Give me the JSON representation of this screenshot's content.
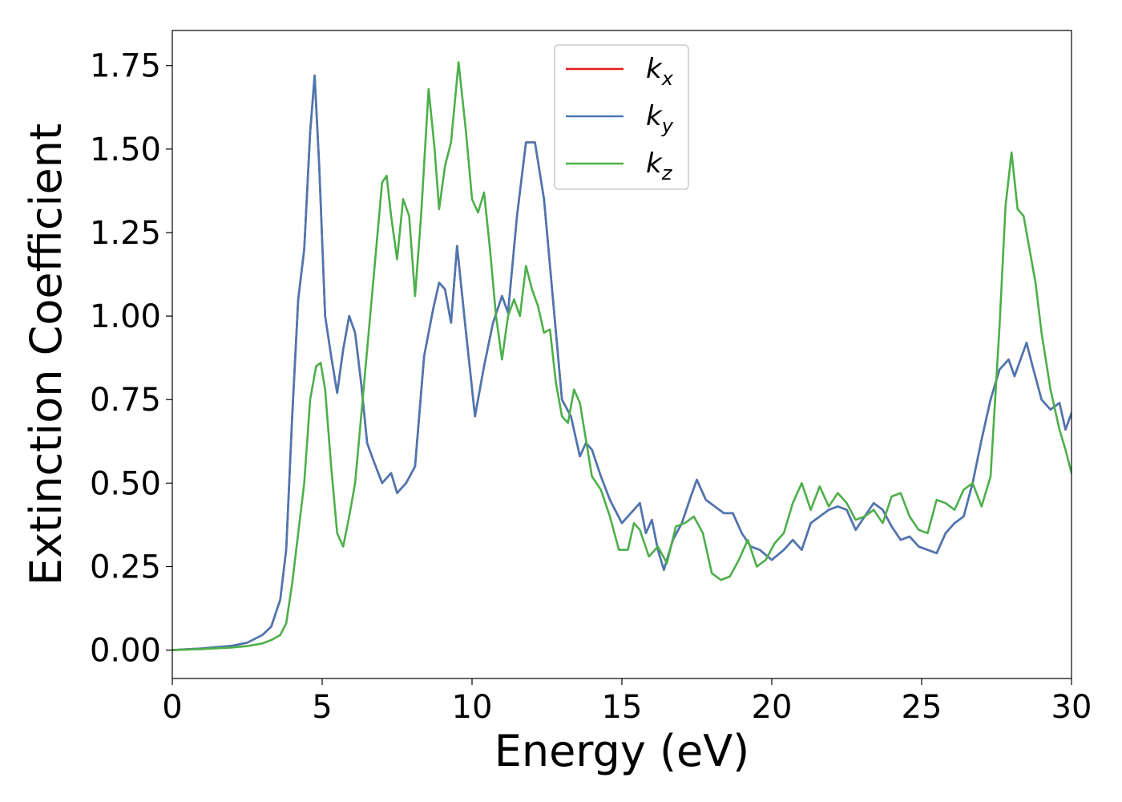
{
  "chart_data": {
    "type": "line",
    "xlabel": "Energy (eV)",
    "ylabel": "Extinction Coefficient",
    "xlim": [
      0,
      30
    ],
    "ylim": [
      -0.085,
      1.855
    ],
    "xticks": [
      0,
      5,
      10,
      15,
      20,
      25,
      30
    ],
    "xtick_labels": [
      "0",
      "5",
      "10",
      "15",
      "20",
      "25",
      "30"
    ],
    "yticks": [
      0,
      0.25,
      0.5,
      0.75,
      1.0,
      1.25,
      1.5,
      1.75
    ],
    "ytick_labels": [
      "0.00",
      "0.25",
      "0.50",
      "0.75",
      "1.00",
      "1.25",
      "1.50",
      "1.75"
    ],
    "grid": false,
    "legend_position": "top-center",
    "series": [
      {
        "name": "k_x",
        "legend_main": "k",
        "legend_sub": "x",
        "color": "#e41a1c",
        "x": [
          0,
          1,
          2,
          2.5,
          3,
          3.3,
          3.6,
          3.8,
          4.0,
          4.2,
          4.4,
          4.6,
          4.75,
          4.9,
          5.1,
          5.3,
          5.5,
          5.7,
          5.9,
          6.1,
          6.3,
          6.5,
          6.7,
          7.0,
          7.3,
          7.5,
          7.8,
          8.1,
          8.4,
          8.7,
          8.9,
          9.1,
          9.3,
          9.5,
          9.8,
          10.1,
          10.4,
          10.7,
          11.0,
          11.2,
          11.5,
          11.8,
          12.1,
          12.4,
          12.7,
          13.0,
          13.3,
          13.6,
          13.8,
          14.0,
          14.3,
          14.6,
          15.0,
          15.3,
          15.6,
          15.8,
          16.0,
          16.2,
          16.4,
          16.7,
          17.0,
          17.3,
          17.5,
          17.8,
          18.1,
          18.4,
          18.7,
          19.0,
          19.3,
          19.6,
          20.0,
          20.4,
          20.7,
          21.0,
          21.3,
          21.6,
          21.9,
          22.2,
          22.5,
          22.8,
          23.1,
          23.4,
          23.7,
          24.0,
          24.3,
          24.6,
          24.9,
          25.2,
          25.5,
          25.8,
          26.1,
          26.4,
          26.7,
          27.0,
          27.3,
          27.6,
          27.9,
          28.1,
          28.3,
          28.5,
          28.7,
          29.0,
          29.3,
          29.6,
          29.8,
          30.0
        ],
        "y": [
          0.0,
          0.005,
          0.013,
          0.022,
          0.045,
          0.07,
          0.15,
          0.3,
          0.7,
          1.05,
          1.2,
          1.55,
          1.72,
          1.45,
          1.0,
          0.88,
          0.77,
          0.9,
          1.0,
          0.95,
          0.8,
          0.62,
          0.57,
          0.5,
          0.53,
          0.47,
          0.5,
          0.55,
          0.88,
          1.02,
          1.1,
          1.08,
          0.98,
          1.21,
          0.95,
          0.7,
          0.85,
          0.98,
          1.06,
          1.01,
          1.3,
          1.52,
          1.52,
          1.35,
          1.05,
          0.75,
          0.7,
          0.58,
          0.62,
          0.6,
          0.52,
          0.45,
          0.38,
          0.41,
          0.44,
          0.35,
          0.39,
          0.3,
          0.24,
          0.33,
          0.38,
          0.46,
          0.51,
          0.45,
          0.43,
          0.41,
          0.41,
          0.35,
          0.31,
          0.3,
          0.27,
          0.3,
          0.33,
          0.3,
          0.38,
          0.4,
          0.42,
          0.43,
          0.42,
          0.36,
          0.4,
          0.44,
          0.42,
          0.37,
          0.33,
          0.34,
          0.31,
          0.3,
          0.29,
          0.35,
          0.38,
          0.4,
          0.5,
          0.63,
          0.75,
          0.84,
          0.87,
          0.82,
          0.87,
          0.92,
          0.85,
          0.75,
          0.72,
          0.74,
          0.66,
          0.71
        ]
      },
      {
        "name": "k_y",
        "legend_main": "k",
        "legend_sub": "y",
        "color": "#4a78b3",
        "x": [
          0,
          1,
          2,
          2.5,
          3,
          3.3,
          3.6,
          3.8,
          4.0,
          4.2,
          4.4,
          4.6,
          4.75,
          4.9,
          5.1,
          5.3,
          5.5,
          5.7,
          5.9,
          6.1,
          6.3,
          6.5,
          6.7,
          7.0,
          7.3,
          7.5,
          7.8,
          8.1,
          8.4,
          8.7,
          8.9,
          9.1,
          9.3,
          9.5,
          9.8,
          10.1,
          10.4,
          10.7,
          11.0,
          11.2,
          11.5,
          11.8,
          12.1,
          12.4,
          12.7,
          13.0,
          13.3,
          13.6,
          13.8,
          14.0,
          14.3,
          14.6,
          15.0,
          15.3,
          15.6,
          15.8,
          16.0,
          16.2,
          16.4,
          16.7,
          17.0,
          17.3,
          17.5,
          17.8,
          18.1,
          18.4,
          18.7,
          19.0,
          19.3,
          19.6,
          20.0,
          20.4,
          20.7,
          21.0,
          21.3,
          21.6,
          21.9,
          22.2,
          22.5,
          22.8,
          23.1,
          23.4,
          23.7,
          24.0,
          24.3,
          24.6,
          24.9,
          25.2,
          25.5,
          25.8,
          26.1,
          26.4,
          26.7,
          27.0,
          27.3,
          27.6,
          27.9,
          28.1,
          28.3,
          28.5,
          28.7,
          29.0,
          29.3,
          29.6,
          29.8,
          30.0
        ],
        "y": [
          0.0,
          0.005,
          0.013,
          0.022,
          0.045,
          0.07,
          0.15,
          0.3,
          0.7,
          1.05,
          1.2,
          1.55,
          1.72,
          1.45,
          1.0,
          0.88,
          0.77,
          0.9,
          1.0,
          0.95,
          0.8,
          0.62,
          0.57,
          0.5,
          0.53,
          0.47,
          0.5,
          0.55,
          0.88,
          1.02,
          1.1,
          1.08,
          0.98,
          1.21,
          0.95,
          0.7,
          0.85,
          0.98,
          1.06,
          1.01,
          1.3,
          1.52,
          1.52,
          1.35,
          1.05,
          0.75,
          0.7,
          0.58,
          0.62,
          0.6,
          0.52,
          0.45,
          0.38,
          0.41,
          0.44,
          0.35,
          0.39,
          0.3,
          0.24,
          0.33,
          0.38,
          0.46,
          0.51,
          0.45,
          0.43,
          0.41,
          0.41,
          0.35,
          0.31,
          0.3,
          0.27,
          0.3,
          0.33,
          0.3,
          0.38,
          0.4,
          0.42,
          0.43,
          0.42,
          0.36,
          0.4,
          0.44,
          0.42,
          0.37,
          0.33,
          0.34,
          0.31,
          0.3,
          0.29,
          0.35,
          0.38,
          0.4,
          0.5,
          0.63,
          0.75,
          0.84,
          0.87,
          0.82,
          0.87,
          0.92,
          0.85,
          0.75,
          0.72,
          0.74,
          0.66,
          0.71
        ]
      },
      {
        "name": "k_z",
        "legend_main": "k",
        "legend_sub": "z",
        "color": "#4daf4a",
        "x": [
          0,
          1,
          2,
          2.5,
          3,
          3.3,
          3.6,
          3.8,
          4.0,
          4.2,
          4.4,
          4.6,
          4.8,
          4.95,
          5.1,
          5.3,
          5.5,
          5.7,
          5.9,
          6.1,
          6.4,
          6.7,
          7.0,
          7.15,
          7.3,
          7.5,
          7.7,
          7.9,
          8.1,
          8.3,
          8.55,
          8.75,
          8.9,
          9.1,
          9.3,
          9.55,
          9.8,
          10.0,
          10.2,
          10.4,
          10.6,
          10.8,
          11.0,
          11.2,
          11.4,
          11.6,
          11.8,
          12.0,
          12.2,
          12.4,
          12.6,
          12.8,
          13.0,
          13.2,
          13.4,
          13.6,
          13.8,
          14.0,
          14.3,
          14.6,
          14.9,
          15.2,
          15.4,
          15.6,
          15.9,
          16.2,
          16.5,
          16.8,
          17.1,
          17.4,
          17.7,
          18.0,
          18.3,
          18.6,
          18.9,
          19.2,
          19.5,
          19.8,
          20.1,
          20.4,
          20.7,
          21.0,
          21.3,
          21.6,
          21.9,
          22.2,
          22.5,
          22.8,
          23.1,
          23.4,
          23.7,
          24.0,
          24.3,
          24.6,
          24.9,
          25.2,
          25.5,
          25.8,
          26.1,
          26.4,
          26.7,
          27.0,
          27.3,
          27.6,
          27.8,
          28.0,
          28.2,
          28.4,
          28.6,
          28.8,
          29.0,
          29.3,
          29.6,
          29.8,
          30.0
        ],
        "y": [
          0.0,
          0.003,
          0.008,
          0.012,
          0.02,
          0.03,
          0.045,
          0.08,
          0.2,
          0.35,
          0.5,
          0.75,
          0.85,
          0.86,
          0.78,
          0.55,
          0.35,
          0.31,
          0.4,
          0.5,
          0.8,
          1.1,
          1.4,
          1.42,
          1.3,
          1.17,
          1.35,
          1.3,
          1.06,
          1.3,
          1.68,
          1.5,
          1.32,
          1.45,
          1.52,
          1.76,
          1.55,
          1.35,
          1.31,
          1.37,
          1.2,
          1.0,
          0.87,
          1.0,
          1.05,
          1.0,
          1.15,
          1.08,
          1.03,
          0.95,
          0.96,
          0.8,
          0.7,
          0.68,
          0.78,
          0.74,
          0.63,
          0.52,
          0.48,
          0.4,
          0.3,
          0.3,
          0.38,
          0.36,
          0.28,
          0.31,
          0.26,
          0.37,
          0.38,
          0.4,
          0.35,
          0.23,
          0.21,
          0.22,
          0.27,
          0.33,
          0.25,
          0.27,
          0.32,
          0.35,
          0.44,
          0.5,
          0.42,
          0.49,
          0.43,
          0.47,
          0.44,
          0.39,
          0.4,
          0.42,
          0.38,
          0.46,
          0.47,
          0.4,
          0.36,
          0.35,
          0.45,
          0.44,
          0.42,
          0.48,
          0.5,
          0.43,
          0.52,
          0.97,
          1.33,
          1.49,
          1.32,
          1.3,
          1.2,
          1.1,
          0.95,
          0.78,
          0.66,
          0.6,
          0.53
        ]
      }
    ]
  }
}
